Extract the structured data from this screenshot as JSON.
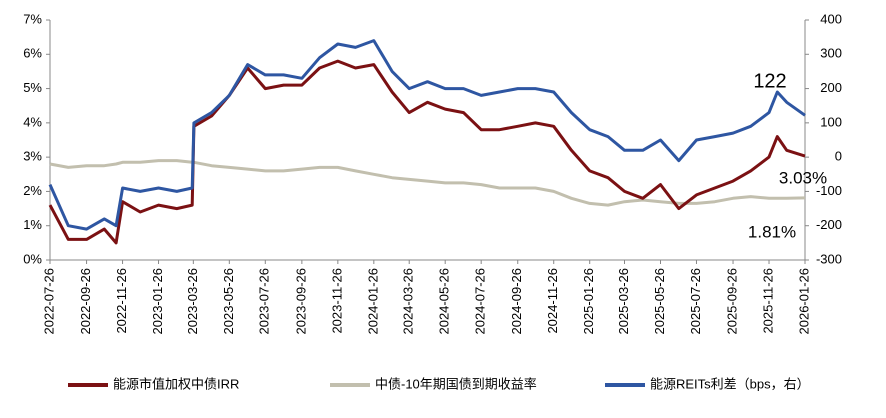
{
  "chart_data": {
    "type": "line",
    "x": [
      "2022-07-26",
      "2022-08-26",
      "2022-09-26",
      "2022-10-26",
      "2022-11-15",
      "2022-11-26",
      "2022-12-26",
      "2023-01-26",
      "2023-02-26",
      "2023-03-24",
      "2023-03-27",
      "2023-04-26",
      "2023-05-26",
      "2023-06-26",
      "2023-07-26",
      "2023-08-26",
      "2023-09-26",
      "2023-10-26",
      "2023-11-26",
      "2023-12-26",
      "2024-01-26",
      "2024-02-26",
      "2024-03-26",
      "2024-04-26",
      "2024-05-26",
      "2024-06-26",
      "2024-07-26",
      "2024-08-26",
      "2024-09-26",
      "2024-10-26",
      "2024-11-26",
      "2024-12-26",
      "2025-01-26",
      "2025-02-26",
      "2025-03-26",
      "2025-04-26",
      "2025-05-26",
      "2025-06-26",
      "2025-07-26",
      "2025-08-26",
      "2025-09-26",
      "2025-10-26",
      "2025-11-26",
      "2025-12-10",
      "2025-12-26",
      "2026-01-26"
    ],
    "xticks": [
      "2022-07-26",
      "2022-09-26",
      "2022-11-26",
      "2023-01-26",
      "2023-03-26",
      "2023-05-26",
      "2023-07-26",
      "2023-09-26",
      "2023-11-26",
      "2024-01-26",
      "2024-03-26",
      "2024-05-26",
      "2024-07-26",
      "2024-09-26",
      "2024-11-26",
      "2025-01-26",
      "2025-03-26",
      "2025-05-26",
      "2025-07-26",
      "2025-09-26",
      "2025-11-26",
      "2026-01-26"
    ],
    "ylim": [
      0,
      7
    ],
    "yticks": [
      {
        "value": 0,
        "label": "0%"
      },
      {
        "value": 1,
        "label": "1%"
      },
      {
        "value": 2,
        "label": "2%"
      },
      {
        "value": 3,
        "label": "3%"
      },
      {
        "value": 4,
        "label": "4%"
      },
      {
        "value": 5,
        "label": "5%"
      },
      {
        "value": 6,
        "label": "6%"
      },
      {
        "value": 7,
        "label": "7%"
      }
    ],
    "y2lim": [
      -300,
      400
    ],
    "y2ticks": [
      -300,
      -200,
      -100,
      0,
      100,
      200,
      300,
      400
    ],
    "series": [
      {
        "name": "能源市值加权中债IRR",
        "color": "#7b1113",
        "values": [
          1.6,
          0.6,
          0.6,
          0.9,
          0.5,
          1.7,
          1.4,
          1.6,
          1.5,
          1.6,
          3.9,
          4.2,
          4.8,
          5.6,
          5.0,
          5.1,
          5.1,
          5.6,
          5.8,
          5.6,
          5.7,
          4.9,
          4.3,
          4.6,
          4.4,
          4.3,
          3.8,
          3.8,
          3.9,
          4.0,
          3.9,
          3.2,
          2.6,
          2.4,
          2.0,
          1.8,
          2.2,
          1.5,
          1.9,
          2.1,
          2.3,
          2.6,
          3.0,
          3.6,
          3.2,
          3.03
        ]
      },
      {
        "name": "中债-10年期国债到期收益率",
        "color": "#c2bfae",
        "values": [
          2.8,
          2.7,
          2.75,
          2.75,
          2.8,
          2.85,
          2.85,
          2.9,
          2.9,
          2.85,
          2.85,
          2.75,
          2.7,
          2.65,
          2.6,
          2.6,
          2.65,
          2.7,
          2.7,
          2.6,
          2.5,
          2.4,
          2.35,
          2.3,
          2.25,
          2.25,
          2.2,
          2.1,
          2.1,
          2.1,
          2.0,
          1.8,
          1.65,
          1.6,
          1.7,
          1.75,
          1.7,
          1.65,
          1.65,
          1.7,
          1.8,
          1.85,
          1.8,
          1.8,
          1.8,
          1.81
        ]
      },
      {
        "name": "能源REITs利差（bps，右）",
        "color": "#2e56a2",
        "axis": "y2",
        "values": [
          -80,
          -200,
          -210,
          -180,
          -200,
          -90,
          -100,
          -90,
          -100,
          -90,
          100,
          130,
          180,
          270,
          240,
          240,
          230,
          290,
          330,
          320,
          340,
          250,
          200,
          220,
          200,
          200,
          180,
          190,
          200,
          200,
          190,
          130,
          80,
          60,
          20,
          20,
          50,
          -10,
          50,
          60,
          70,
          90,
          130,
          190,
          160,
          122
        ]
      }
    ],
    "annotations": [
      "122",
      "3.03%",
      "1.81%"
    ]
  }
}
